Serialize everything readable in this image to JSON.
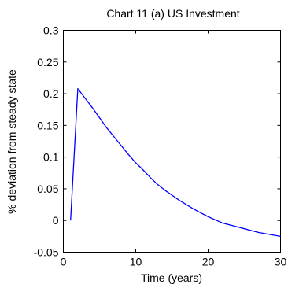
{
  "chart_data": {
    "type": "line",
    "title": "Chart 11 (a) US Investment",
    "xlabel": "Time (years)",
    "ylabel": "% deviation from steady state",
    "xlim": [
      0,
      30
    ],
    "ylim": [
      -0.05,
      0.3
    ],
    "x_ticks": [
      0,
      10,
      20,
      30
    ],
    "x_tick_labels": [
      "0",
      "10",
      "20",
      "30"
    ],
    "y_ticks": [
      -0.05,
      0,
      0.05,
      0.1,
      0.15,
      0.2,
      0.25,
      0.3
    ],
    "y_tick_labels": [
      "-0.05",
      "0",
      "0.05",
      "0.1",
      "0.15",
      "0.2",
      "0.25",
      "0.3"
    ],
    "grid": false,
    "line_color": "#0000ff",
    "series": [
      {
        "x": [
          1,
          2,
          3,
          4,
          5,
          6,
          7,
          8,
          9,
          10,
          11,
          12,
          13,
          14,
          15,
          16,
          17,
          18,
          19,
          20,
          21,
          22,
          23,
          24,
          25,
          26,
          27,
          28,
          29,
          30
        ],
        "values": [
          0.0,
          0.208,
          0.193,
          0.178,
          0.162,
          0.146,
          0.132,
          0.118,
          0.104,
          0.091,
          0.08,
          0.068,
          0.057,
          0.048,
          0.04,
          0.032,
          0.025,
          0.018,
          0.012,
          0.006,
          0.001,
          -0.004,
          -0.007,
          -0.01,
          -0.013,
          -0.016,
          -0.019,
          -0.021,
          -0.023,
          -0.025
        ]
      }
    ]
  }
}
